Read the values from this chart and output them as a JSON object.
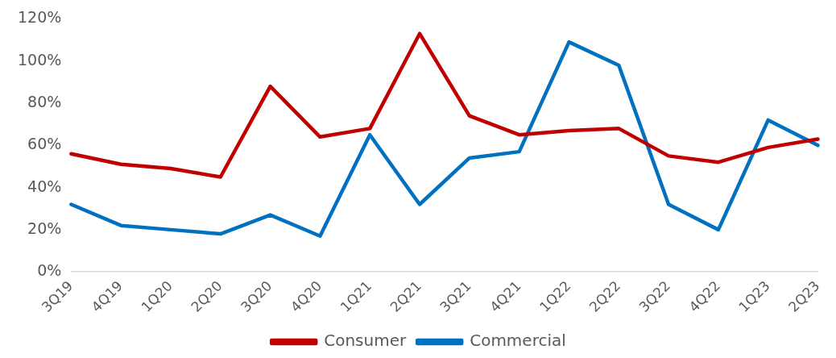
{
  "chart_data": {
    "type": "line",
    "categories": [
      "3Q19",
      "4Q19",
      "1Q20",
      "2Q20",
      "3Q20",
      "4Q20",
      "1Q21",
      "2Q21",
      "3Q21",
      "4Q21",
      "1Q22",
      "2Q22",
      "3Q22",
      "4Q22",
      "1Q23",
      "2Q23"
    ],
    "series": [
      {
        "name": "Consumer",
        "color": "#c00000",
        "values": [
          56,
          51,
          49,
          45,
          88,
          64,
          68,
          113,
          74,
          65,
          67,
          68,
          55,
          52,
          59,
          63
        ]
      },
      {
        "name": "Commercial",
        "color": "#0070c0",
        "values": [
          32,
          22,
          20,
          18,
          27,
          17,
          65,
          32,
          54,
          57,
          109,
          98,
          32,
          20,
          72,
          60
        ]
      }
    ],
    "ylim": [
      0,
      120
    ],
    "yticks": [
      {
        "value": 0,
        "label": "0%"
      },
      {
        "value": 20,
        "label": "20%"
      },
      {
        "value": 40,
        "label": "40%"
      },
      {
        "value": 60,
        "label": "60%"
      },
      {
        "value": 80,
        "label": "80%"
      },
      {
        "value": 100,
        "label": "100%"
      },
      {
        "value": 120,
        "label": "120%"
      }
    ],
    "grid": false,
    "legend": "bottom",
    "marker": "none",
    "line_style": "solid"
  }
}
